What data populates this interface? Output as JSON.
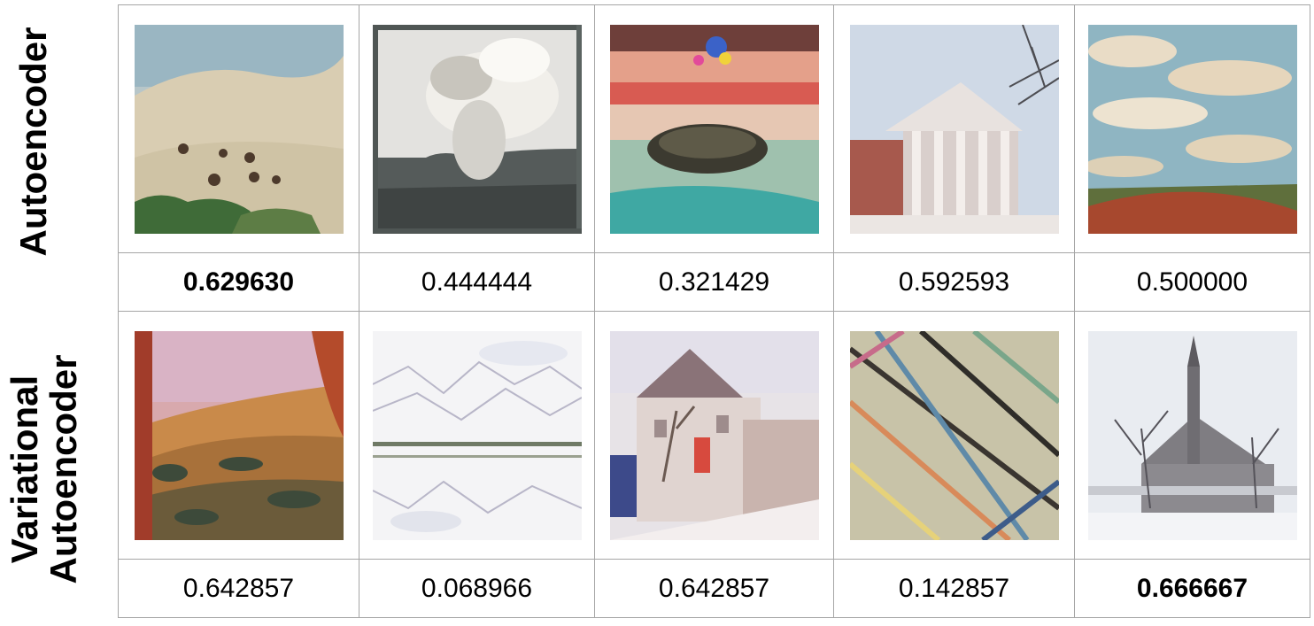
{
  "rows": [
    {
      "label": "Autoencoder",
      "images": [
        {
          "subject": "desert-hills-painting"
        },
        {
          "subject": "smoke-cloud-painting"
        },
        {
          "subject": "island-sunset-painting"
        },
        {
          "subject": "columned-building-painting"
        },
        {
          "subject": "cloudy-landscape-painting"
        }
      ],
      "scores": [
        "0.629630",
        "0.444444",
        "0.321429",
        "0.592593",
        "0.500000"
      ],
      "best_index": 0
    },
    {
      "label_line1": "Variational",
      "label_line2": "Autoencoder",
      "images": [
        {
          "subject": "autumn-trees-painting"
        },
        {
          "subject": "white-abstract-lake-painting"
        },
        {
          "subject": "house-street-painting"
        },
        {
          "subject": "abstract-strokes-painting"
        },
        {
          "subject": "church-winter-painting"
        }
      ],
      "scores": [
        "0.642857",
        "0.068966",
        "0.642857",
        "0.142857",
        "0.666667"
      ],
      "best_index": 4
    }
  ]
}
